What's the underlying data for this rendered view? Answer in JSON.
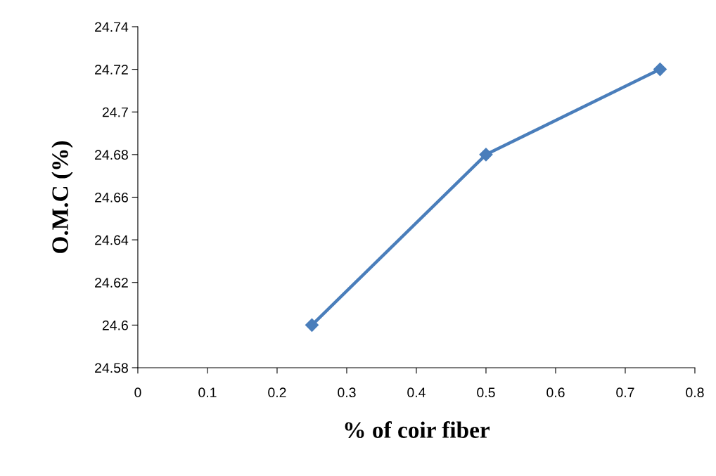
{
  "chart_data": {
    "type": "line",
    "xlabel": "% of coir fiber",
    "ylabel": "O.M.C (%)",
    "x": [
      0.25,
      0.5,
      0.75
    ],
    "series": [
      {
        "color": "#4a7ebb",
        "values": [
          24.6,
          24.68,
          24.72
        ],
        "marker": "diamond",
        "line_style": "solid"
      }
    ],
    "xlim": [
      0,
      0.8
    ],
    "xticks": [
      0,
      0.1,
      0.2,
      0.3,
      0.4,
      0.5,
      0.6,
      0.7,
      0.8
    ],
    "ylim": [
      24.58,
      24.74
    ],
    "yticks": [
      24.58,
      24.6,
      24.62,
      24.64,
      24.66,
      24.68,
      24.7,
      24.72,
      24.74
    ],
    "grid": false,
    "legend": false
  }
}
